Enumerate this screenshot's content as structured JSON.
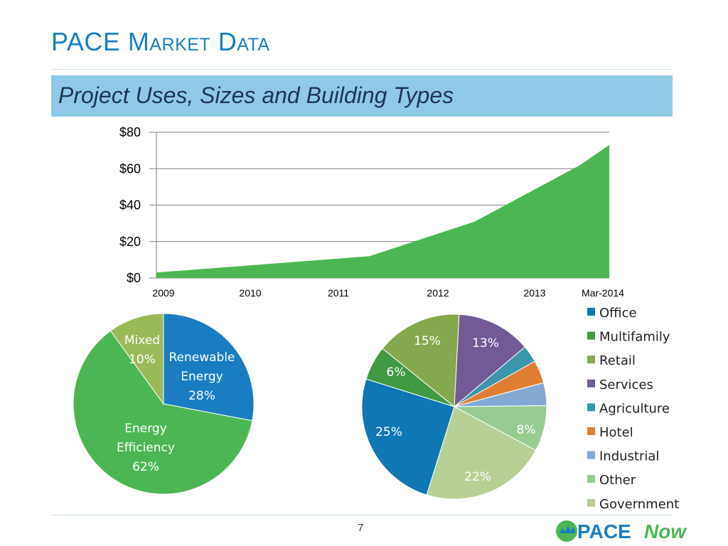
{
  "slide": {
    "title": "PACE Market Data",
    "subtitle": "Project Uses, Sizes and Building Types",
    "page_number": "7",
    "logo": {
      "part1": "PACE",
      "part2": "Now"
    },
    "colors": {
      "title": "#1a7dc2",
      "banner": "#8ecae6",
      "area": "#4cb752"
    }
  },
  "chart_data": [
    {
      "type": "area",
      "x": [
        "2009",
        "2010",
        "2011",
        "2012",
        "2013",
        "Mar-2014"
      ],
      "values": [
        3,
        7,
        12,
        31,
        62,
        73
      ],
      "y_ticks": [
        "$80",
        "$60",
        "$40",
        "$20",
        "$0"
      ],
      "ylim": [
        0,
        80
      ],
      "grid": true
    },
    {
      "type": "pie",
      "slices": [
        {
          "label": "Renewable Energy",
          "label_lines": [
            "Renewable",
            "Energy"
          ],
          "pct_label": "28%",
          "value": 28,
          "color": "#1a7dc2"
        },
        {
          "label": "Energy Efficiency",
          "label_lines": [
            "Energy",
            "Efficiency"
          ],
          "pct_label": "62%",
          "value": 62,
          "color": "#4cb752"
        },
        {
          "label": "Mixed",
          "label_lines": [
            "Mixed"
          ],
          "pct_label": "10%",
          "value": 10,
          "color": "#9aba59"
        }
      ]
    },
    {
      "type": "pie",
      "legend_position": "right",
      "slices": [
        {
          "label": "Office",
          "value": 25,
          "pct_label": "25%",
          "color": "#0f77b3"
        },
        {
          "label": "Multifamily",
          "value": 6,
          "pct_label": "6%",
          "color": "#3f9a42"
        },
        {
          "label": "Retail",
          "value": 15,
          "pct_label": "15%",
          "color": "#86a84f"
        },
        {
          "label": "Services",
          "value": 13,
          "pct_label": "13%",
          "color": "#725a96"
        },
        {
          "label": "Agriculture",
          "value": 3,
          "pct_label": "",
          "color": "#3b95ad"
        },
        {
          "label": "Hotel",
          "value": 4,
          "pct_label": "",
          "color": "#e07f33"
        },
        {
          "label": "Industrial",
          "value": 4,
          "pct_label": "",
          "color": "#82a9d4"
        },
        {
          "label": "Other",
          "value": 8,
          "pct_label": "8%",
          "color": "#95cd91"
        },
        {
          "label": "Government",
          "value": 22,
          "pct_label": "22%",
          "color": "#b9d095"
        }
      ]
    }
  ]
}
